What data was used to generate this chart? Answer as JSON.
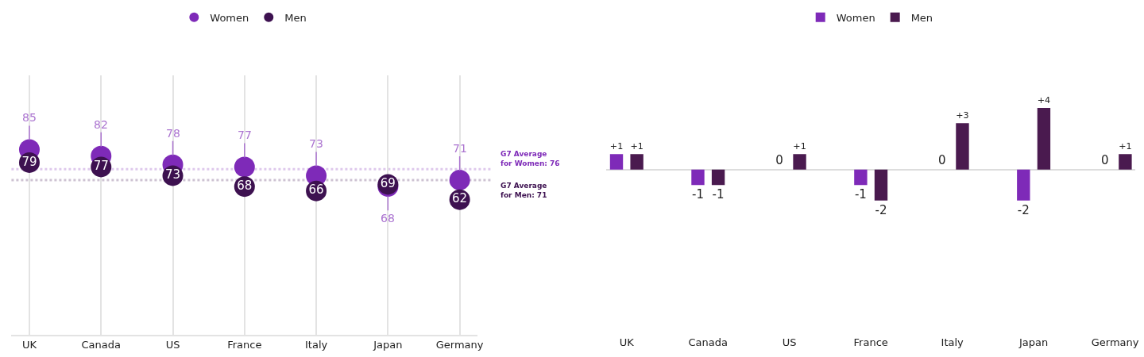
{
  "chart_data": [
    {
      "type": "scatter",
      "categories": [
        "UK",
        "Canada",
        "US",
        "France",
        "Italy",
        "Japan",
        "Germany"
      ],
      "series": [
        {
          "name": "Women",
          "color": "#7e2ab8",
          "values": [
            85,
            82,
            78,
            77,
            73,
            68,
            71
          ]
        },
        {
          "name": "Men",
          "color": "#3d1150",
          "values": [
            79,
            77,
            73,
            68,
            66,
            69,
            62
          ]
        }
      ],
      "data_labels": true,
      "marker": "circle",
      "grid": "x",
      "tick_labels": "x",
      "legend": "top",
      "ref_lines": [
        {
          "axis": "y",
          "value": 76,
          "label": "G7 Average\nfor Women: 76",
          "color": "#7e2ab8",
          "line_style": "dotted"
        },
        {
          "axis": "y",
          "value": 71,
          "label": "G7 Average\nfor Men: 71",
          "color": "#3d1150",
          "line_style": "dotted"
        }
      ]
    },
    {
      "type": "bar",
      "categories": [
        "UK",
        "Canada",
        "US",
        "France",
        "Italy",
        "Japan",
        "Germany"
      ],
      "series": [
        {
          "name": "Women",
          "color": "#7e2ab8",
          "values": [
            1,
            -1,
            0,
            -1,
            0,
            -2,
            0
          ],
          "value_labels": [
            "+1",
            "-1",
            "0",
            "-1",
            "0",
            "-2",
            "0"
          ]
        },
        {
          "name": "Men",
          "color": "#4a1a4f",
          "values": [
            1,
            -1,
            1,
            -2,
            3,
            4,
            1
          ],
          "value_labels": [
            "+1",
            "-1",
            "+1",
            "-2",
            "+3",
            "+4",
            "+1"
          ]
        }
      ],
      "tick_labels": "x",
      "legend": "top"
    }
  ]
}
